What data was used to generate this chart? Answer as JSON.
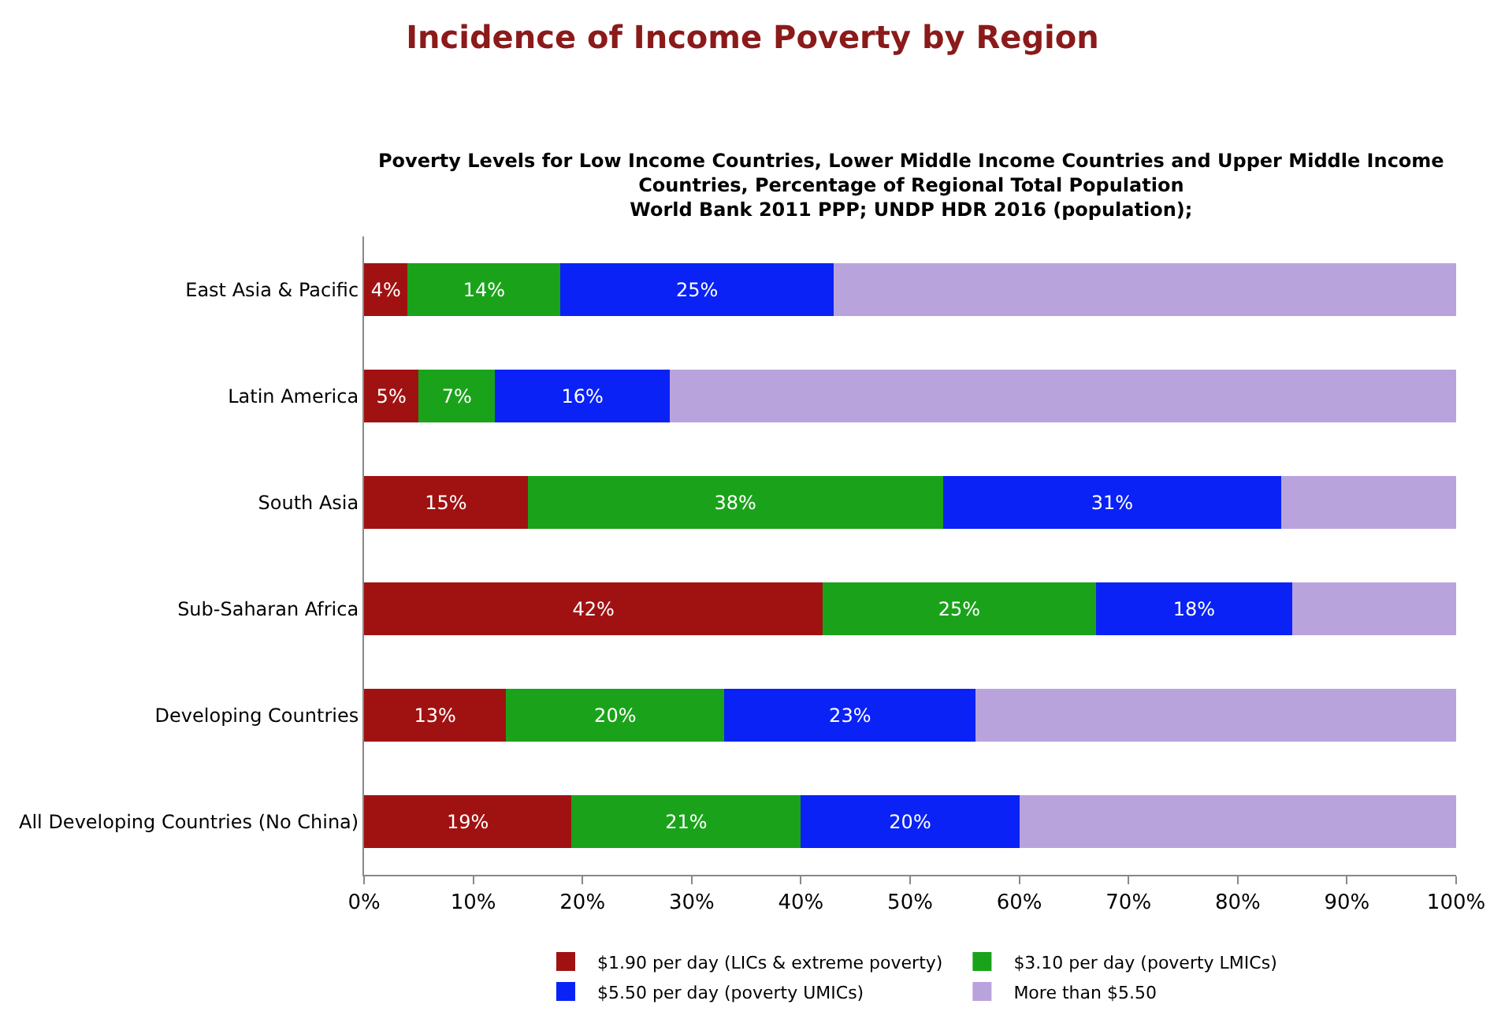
{
  "chart_data": {
    "type": "bar",
    "orientation": "horizontal",
    "stacked": true,
    "title": "Incidence of Income Poverty by Region",
    "subtitle": "Poverty Levels for Low Income Countries, Lower Middle Income Countries and Upper Middle Income\nCountries, Percentage of Regional Total Population\nWorld Bank 2011 PPP; UNDP HDR 2016 (population);",
    "categories": [
      "East Asia & Pacific",
      "Latin America",
      "South Asia",
      "Sub-Saharan Africa",
      "Developing Countries",
      "All Developing Countries (No China)"
    ],
    "series": [
      {
        "name": "$1.90 per day (LICs & extreme poverty)",
        "color": "#a01212",
        "values": [
          4,
          5,
          15,
          42,
          13,
          19
        ],
        "value_labels": [
          "4%",
          "5%",
          "15%",
          "42%",
          "13%",
          "19%"
        ]
      },
      {
        "name": "$3.10 per day (poverty LMICs)",
        "color": "#1aa31a",
        "values": [
          14,
          7,
          38,
          25,
          20,
          21
        ],
        "value_labels": [
          "14%",
          "7%",
          "38%",
          "25%",
          "20%",
          "21%"
        ]
      },
      {
        "name": "$5.50 per day (poverty UMICs)",
        "color": "#0a22f5",
        "values": [
          25,
          16,
          31,
          18,
          23,
          20
        ],
        "value_labels": [
          "25%",
          "16%",
          "31%",
          "18%",
          "23%",
          "20%"
        ]
      },
      {
        "name": "More than $5.50",
        "color": "#b9a3dc",
        "values": [
          57,
          72,
          16,
          15,
          44,
          40
        ],
        "value_labels": [
          null,
          null,
          null,
          null,
          null,
          null
        ]
      }
    ],
    "xlim": [
      0,
      100
    ],
    "xticks": [
      {
        "value": 0,
        "label": "0%"
      },
      {
        "value": 10,
        "label": "10%"
      },
      {
        "value": 20,
        "label": "20%"
      },
      {
        "value": 30,
        "label": "30%"
      },
      {
        "value": 40,
        "label": "40%"
      },
      {
        "value": 50,
        "label": "50%"
      },
      {
        "value": 60,
        "label": "60%"
      },
      {
        "value": 70,
        "label": "70%"
      },
      {
        "value": 80,
        "label": "80%"
      },
      {
        "value": 90,
        "label": "90%"
      },
      {
        "value": 100,
        "label": "100%"
      }
    ],
    "legend": "bottom"
  }
}
